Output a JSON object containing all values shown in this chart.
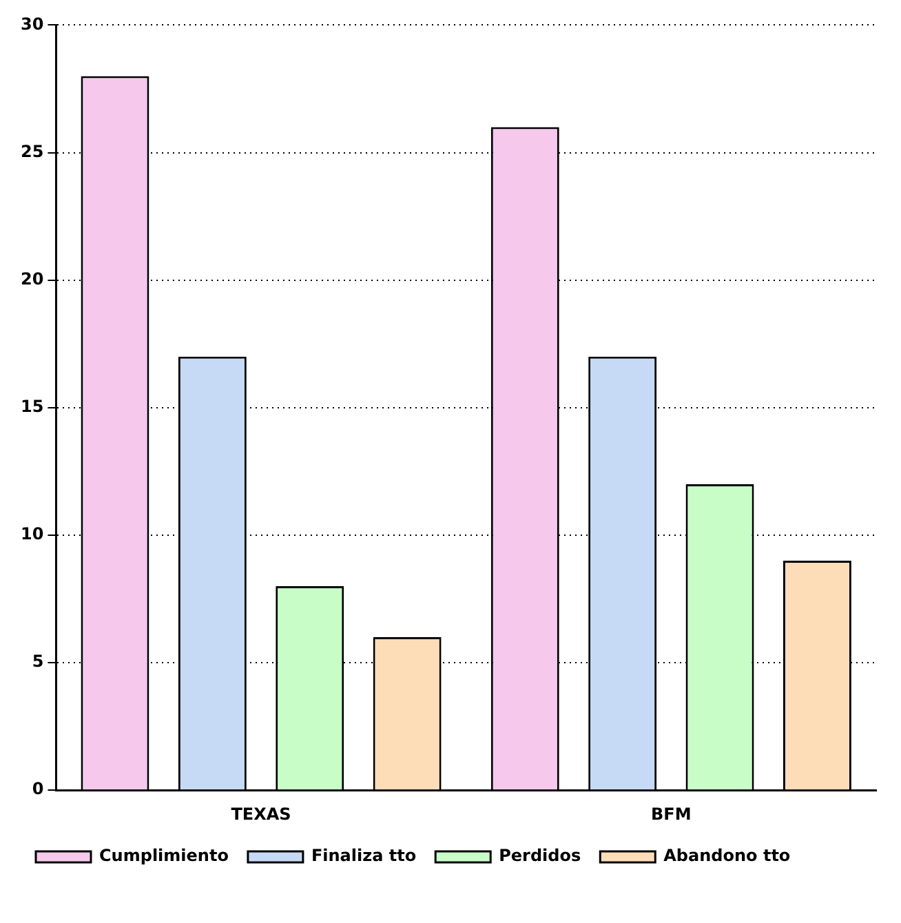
{
  "chart_data": {
    "type": "bar",
    "categories": [
      "TEXAS",
      "BFM"
    ],
    "series": [
      {
        "name": "Cumplimiento",
        "color": "#f5c8ec",
        "values": [
          28,
          26
        ]
      },
      {
        "name": "Finaliza tto",
        "color": "#c6daf5",
        "values": [
          17,
          17
        ]
      },
      {
        "name": "Perdidos",
        "color": "#c8fdc8",
        "values": [
          8,
          12
        ]
      },
      {
        "name": "Abandono tto",
        "color": "#fddcb8",
        "values": [
          6,
          9
        ]
      }
    ],
    "ylim": [
      0,
      30
    ],
    "yticks": [
      0,
      5,
      10,
      15,
      20,
      25,
      30
    ],
    "grid": "y",
    "legend": "bottom"
  }
}
